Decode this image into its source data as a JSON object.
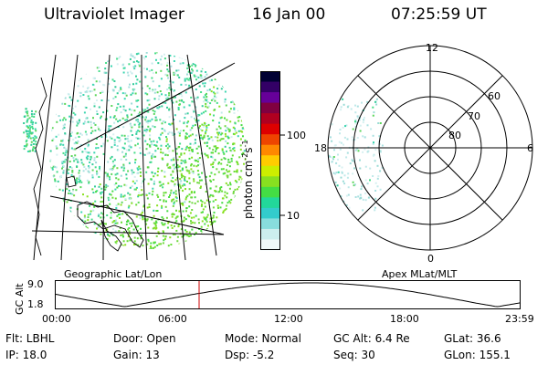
{
  "header": {
    "title": "Ultraviolet Imager",
    "date": "16 Jan 00",
    "time": "07:25:59 UT"
  },
  "geo_panel": {
    "caption": "Geographic Lat/Lon"
  },
  "polar_panel": {
    "caption": "Apex MLat/MLT",
    "mlt_labels": {
      "top": "12",
      "left": "18",
      "right": "6",
      "bottom": "0"
    },
    "lat_labels": [
      "60",
      "70",
      "80"
    ]
  },
  "colorbar": {
    "unit_main": "photon cm",
    "unit_exp1": "-2",
    "unit_mid": "s",
    "unit_exp2": "-1",
    "tick_high": "100",
    "tick_low": "10",
    "colors": [
      "#000033",
      "#330066",
      "#660099",
      "#800040",
      "#b00020",
      "#dd0000",
      "#ee4400",
      "#ff8800",
      "#ffcc00",
      "#ccee00",
      "#88e020",
      "#44dd44",
      "#22d89a",
      "#33cccc",
      "#88dddd",
      "#cceeee",
      "#f0f8f8"
    ]
  },
  "altitude_plot": {
    "ylabel": "GC Alt",
    "ytick_top": "9.0",
    "ytick_bottom": "1.8",
    "xticks": [
      "00:00",
      "06:00",
      "12:00",
      "18:00",
      "23:59"
    ],
    "current_time_hours": 7.433,
    "marker_color": "#cc0000"
  },
  "info": {
    "row1": {
      "flt": "Flt: LBHL",
      "door": "Door: Open",
      "mode": "Mode: Normal",
      "gcalt": "GC Alt: 6.4 Re",
      "glat": "GLat:  36.6"
    },
    "row2": {
      "ip": "IP: 18.0",
      "gain": "Gain: 13",
      "dsp": "Dsp:    -5.2",
      "seq": "Seq: 30",
      "glon": "GLon: 155.1"
    }
  }
}
